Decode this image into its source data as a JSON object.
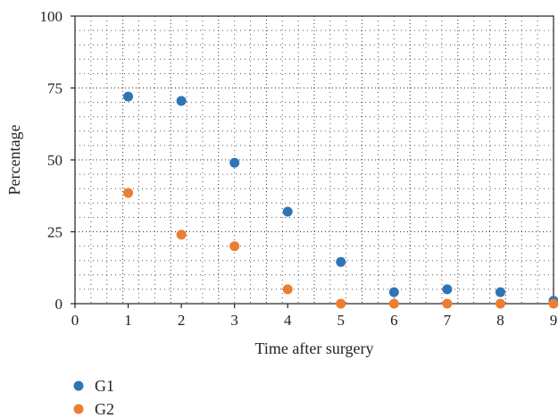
{
  "chart_data": {
    "type": "scatter",
    "xlabel": "Time after surgery",
    "ylabel": "Percentage",
    "xlim": [
      0,
      9
    ],
    "ylim": [
      0,
      100
    ],
    "xticks": [
      0,
      1,
      2,
      3,
      4,
      5,
      6,
      7,
      8,
      9
    ],
    "yticks": [
      0,
      25,
      50,
      75,
      100
    ],
    "grid": true,
    "legend_position": "bottom-left",
    "series": [
      {
        "name": "G1",
        "color": "#2e75b6",
        "x": [
          1,
          2,
          3,
          4,
          5,
          6,
          7,
          8,
          9
        ],
        "y": [
          72,
          70.5,
          49,
          32,
          14.5,
          4,
          5,
          4,
          1
        ]
      },
      {
        "name": "G2",
        "color": "#ed7d31",
        "x": [
          1,
          2,
          3,
          4,
          5,
          6,
          7,
          8,
          9
        ],
        "y": [
          38.5,
          24,
          20,
          5,
          0,
          0,
          0,
          0,
          0
        ]
      }
    ]
  }
}
